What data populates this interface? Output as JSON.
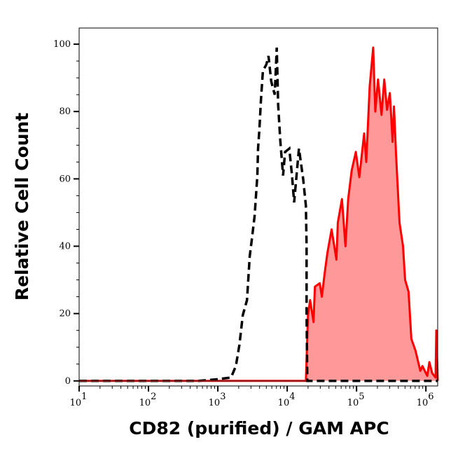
{
  "chart_data": {
    "type": "area",
    "title": "",
    "xlabel": "CD82 (purified) / GAM APC",
    "ylabel": "Relative Cell Count",
    "x_scale": "log",
    "xlim_log10": [
      1,
      6.17
    ],
    "ylim": [
      -1.5,
      104.8
    ],
    "x_ticks": [
      {
        "base": "10",
        "exp": "1",
        "value": 10
      },
      {
        "base": "10",
        "exp": "2",
        "value": 100
      },
      {
        "base": "10",
        "exp": "3",
        "value": 1000
      },
      {
        "base": "10",
        "exp": "4",
        "value": 10000
      },
      {
        "base": "10",
        "exp": "5",
        "value": 100000
      },
      {
        "base": "10",
        "exp": "6",
        "value": 1000000
      }
    ],
    "y_ticks": [
      "0",
      "20",
      "40",
      "60",
      "80",
      "100"
    ],
    "grid": false,
    "series": [
      {
        "style": "dashed-line",
        "color": "#000000",
        "points_log10x": [
          [
            1,
            0
          ],
          [
            2.72,
            0
          ],
          [
            3.0,
            0.5
          ],
          [
            3.19,
            1
          ],
          [
            3.26,
            4.4
          ],
          [
            3.31,
            10.6
          ],
          [
            3.36,
            19.5
          ],
          [
            3.42,
            24
          ],
          [
            3.46,
            37
          ],
          [
            3.49,
            42
          ],
          [
            3.53,
            49
          ],
          [
            3.57,
            61
          ],
          [
            3.58,
            69
          ],
          [
            3.6,
            75
          ],
          [
            3.62,
            83
          ],
          [
            3.65,
            92
          ],
          [
            3.7,
            94
          ],
          [
            3.73,
            96.5
          ],
          [
            3.77,
            89
          ],
          [
            3.82,
            85
          ],
          [
            3.85,
            99
          ],
          [
            3.87,
            82
          ],
          [
            3.9,
            71.5
          ],
          [
            3.94,
            61
          ],
          [
            3.97,
            68
          ],
          [
            4.03,
            69
          ],
          [
            4.07,
            61
          ],
          [
            4.1,
            53
          ],
          [
            4.17,
            69
          ],
          [
            4.23,
            60
          ],
          [
            4.27,
            52
          ],
          [
            4.28,
            40
          ],
          [
            4.28,
            20
          ],
          [
            4.29,
            0
          ],
          [
            6.17,
            0
          ]
        ]
      },
      {
        "style": "filled-line",
        "color": "#ff0000",
        "fill": "#ff9999",
        "points_log10x": [
          [
            1,
            0
          ],
          [
            4.27,
            0
          ],
          [
            4.3,
            19.5
          ],
          [
            4.33,
            24
          ],
          [
            4.38,
            17.5
          ],
          [
            4.4,
            28
          ],
          [
            4.47,
            29
          ],
          [
            4.5,
            25
          ],
          [
            4.54,
            32
          ],
          [
            4.58,
            38
          ],
          [
            4.64,
            45
          ],
          [
            4.71,
            36
          ],
          [
            4.73,
            47
          ],
          [
            4.79,
            54
          ],
          [
            4.84,
            40
          ],
          [
            4.88,
            54
          ],
          [
            4.93,
            62.5
          ],
          [
            4.99,
            68
          ],
          [
            5.04,
            60.5
          ],
          [
            5.11,
            73.5
          ],
          [
            5.14,
            65
          ],
          [
            5.19,
            87.5
          ],
          [
            5.24,
            99
          ],
          [
            5.27,
            80
          ],
          [
            5.31,
            89.5
          ],
          [
            5.36,
            79
          ],
          [
            5.4,
            89.5
          ],
          [
            5.44,
            80.5
          ],
          [
            5.48,
            85.5
          ],
          [
            5.52,
            71
          ],
          [
            5.54,
            81.5
          ],
          [
            5.57,
            67
          ],
          [
            5.62,
            47
          ],
          [
            5.67,
            40
          ],
          [
            5.7,
            30
          ],
          [
            5.75,
            26.5
          ],
          [
            5.79,
            12.5
          ],
          [
            5.85,
            9
          ],
          [
            5.92,
            3
          ],
          [
            5.95,
            4.4
          ],
          [
            6.02,
            1.5
          ],
          [
            6.05,
            5.6
          ],
          [
            6.09,
            2.3
          ],
          [
            6.14,
            1
          ],
          [
            6.15,
            15
          ],
          [
            6.17,
            0
          ]
        ]
      }
    ]
  }
}
